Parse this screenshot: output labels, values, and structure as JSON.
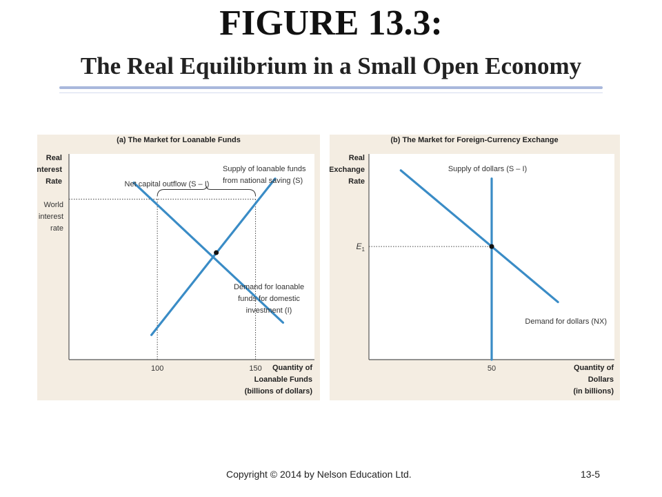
{
  "slide": {
    "title": "FIGURE 13.3:",
    "subtitle": "The Real Equilibrium in a Small Open Economy",
    "copyright": "Copyright © 2014 by Nelson Education Ltd.",
    "page": "13-5"
  },
  "colors": {
    "line": "#3a8cc6",
    "panel_bg": "#f4ede2",
    "plot_bg": "#ffffff",
    "text": "#222222"
  },
  "chart_data": [
    {
      "type": "line",
      "panel_title": "(a) The Market for Loanable Funds",
      "ylabel": [
        "Real",
        "Interest",
        "Rate"
      ],
      "xlabel": [
        "Quantity of",
        "Loanable Funds",
        "(billions of dollars)"
      ],
      "x_ticks": [
        "100",
        "150"
      ],
      "y_tick_label": [
        "World",
        "interest",
        "rate"
      ],
      "series": [
        {
          "name": "Supply of loanable funds from national saving (S)",
          "label_lines": [
            "Supply of loanable funds",
            "from national saving (S)"
          ],
          "points": [
            [
              97,
              0.12
            ],
            [
              160,
              0.88
            ]
          ]
        },
        {
          "name": "Demand for loanable funds for domestic investment (I)",
          "label_lines": [
            "Demand for loanable",
            "funds for domestic",
            "investment (I)"
          ],
          "points": [
            [
              88,
              0.86
            ],
            [
              164,
              0.18
            ]
          ]
        }
      ],
      "markers": {
        "world_rate": 0.78,
        "q_domestic_investment": 100,
        "q_national_saving": 150,
        "equilibrium": [
          130,
          0.52
        ]
      },
      "annotations": {
        "brace_label": "Net capital outflow (S – I)"
      }
    },
    {
      "type": "line",
      "panel_title": "(b) The Market for Foreign-Currency Exchange",
      "ylabel": [
        "Real",
        "Exchange",
        "Rate"
      ],
      "xlabel": [
        "Quantity of",
        "Dollars",
        "(in billions)"
      ],
      "x_ticks": [
        "50"
      ],
      "y_tick_label": "E1",
      "series": [
        {
          "name": "Supply of dollars (S – I)",
          "label_lines": [
            "Supply of dollars (S – I)"
          ],
          "points": [
            [
              50,
              0.0
            ],
            [
              50,
              0.88
            ]
          ]
        },
        {
          "name": "Demand for dollars (NX)",
          "label_lines": [
            "Demand for dollars (NX)"
          ],
          "points": [
            [
              13,
              0.92
            ],
            [
              77,
              0.28
            ]
          ]
        }
      ],
      "markers": {
        "e1": 0.55,
        "equilibrium": [
          50,
          0.55
        ]
      }
    }
  ]
}
